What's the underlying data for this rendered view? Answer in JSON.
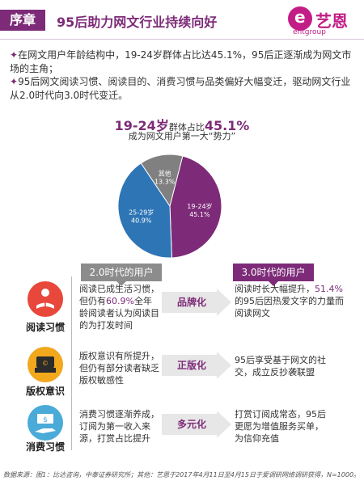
{
  "header": {
    "tag": "序章",
    "title": "95后助力网文行业持续向好",
    "logo_name": "艺恩",
    "logo_sub": "entgroup",
    "logo_letter": "e"
  },
  "intro": [
    "在网文用户年龄结构中，19-24岁群体占比达45.1%，95后正逐渐成为网文市场的主角；",
    "95后网文阅读习惯、阅读目的、消费习惯与品类偏好大幅变迁，驱动网文行业从2.0时代向3.0时代变迁。"
  ],
  "chart_title": {
    "main": "19-24岁",
    "mid": "群体占比",
    "pct": "45.1%",
    "sub": "成为网文用户第一大“势力”"
  },
  "chart_data": {
    "type": "pie",
    "slices": [
      {
        "label": "19-24岁",
        "value": 45.1,
        "value_label": "45.1%",
        "color": "#7d2b78"
      },
      {
        "label": "25-29岁",
        "value": 40.9,
        "value_label": "40.9%",
        "color": "#2e75b6"
      },
      {
        "label": "其他",
        "value": 13.3,
        "value_label": "13.3%",
        "color": "#808080"
      }
    ]
  },
  "panels": {
    "left_header": "2.0时代的用户",
    "right_header": "3.0时代的用户",
    "rows": [
      {
        "label": "阅读习惯",
        "icon": "person-reading-icon",
        "left_parts": [
          "阅读已成生活习惯，但仍有",
          "60.9%",
          "全年龄阅读者认为阅读目的为打发时间"
        ],
        "arrow": "品牌化",
        "right_parts": [
          "阅读时长大幅提升，",
          "51.4%",
          "的95后因热爱文字的力量而阅读网文"
        ]
      },
      {
        "label": "版权意识",
        "icon": "copyright-seal-icon",
        "left_parts": [
          "版权意识有所提升，但仍有部分读者缺乏版权敏感性",
          "",
          ""
        ],
        "arrow": "正版化",
        "right_parts": [
          "95后享受基于网文的社交，成立反抄袭联盟",
          "",
          ""
        ]
      },
      {
        "label": "消费习惯",
        "icon": "money-hand-icon",
        "left_parts": [
          "消费习惯逐渐养成，订阅为第一收入来源，打赏占比提升",
          "",
          ""
        ],
        "arrow": "多元化",
        "right_parts": [
          "打赏订阅成常态，95后更愿为增值服务买单，为信仰充值",
          "",
          ""
        ]
      }
    ]
  },
  "footer": "数据来源：图1：比达咨询，中泰证券研究所；其他：艺恩于2017年4月11日至4月15日于爱调研网络调研获得，N=1000。"
}
